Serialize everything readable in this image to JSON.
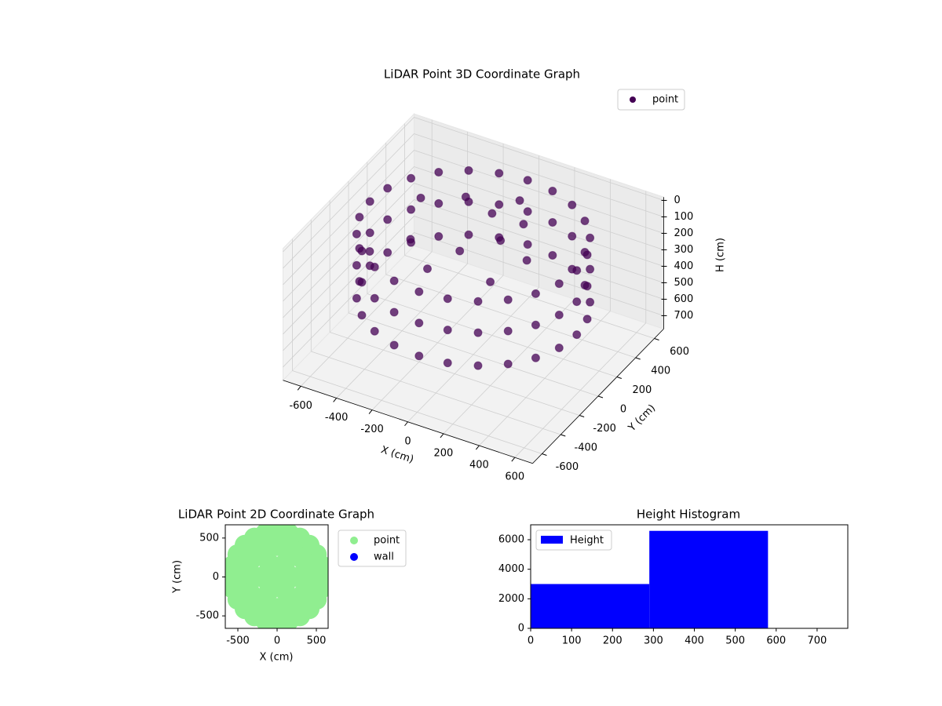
{
  "chart_data": [
    {
      "type": "scatter3d",
      "title": "LiDAR Point 3D Coordinate Graph",
      "x_label": "X (cm)",
      "y_label": "Y (cm)",
      "z_label": "H (cm)",
      "xlim": [
        -700,
        700
      ],
      "ylim": [
        -700,
        700
      ],
      "zlim": [
        -20,
        780
      ],
      "z_inverted": true,
      "xticks": [
        -600,
        -400,
        -200,
        0,
        200,
        400,
        600
      ],
      "yticks": [
        -600,
        -400,
        -200,
        0,
        200,
        400,
        600
      ],
      "zticks": [
        0,
        100,
        200,
        300,
        400,
        500,
        600,
        700
      ],
      "grid": true,
      "legend": "upper right",
      "series": [
        {
          "name": "point",
          "color": "#440154",
          "x": [
            580,
            560,
            502,
            410,
            290,
            150,
            0,
            -150,
            -290,
            -410,
            -502,
            -560,
            -580,
            -560,
            -502,
            -410,
            -290,
            -150,
            0,
            150,
            290,
            410,
            502,
            560,
            580,
            560,
            502,
            410,
            290,
            150,
            0,
            -150,
            -290,
            -410,
            -502,
            -560,
            -580,
            -560,
            -502,
            -410,
            -290,
            -150,
            0,
            150,
            290,
            410,
            502,
            560,
            580,
            560,
            502,
            410,
            290,
            150,
            0,
            -150,
            -290,
            -410,
            -502,
            -560,
            -580,
            -560,
            -502,
            -410,
            -290,
            -150,
            0,
            150,
            290,
            410,
            502,
            560,
            -400,
            -200,
            0,
            100,
            -300,
            200,
            -100,
            300,
            50,
            -450,
            150,
            -50
          ],
          "y": [
            0,
            150,
            290,
            410,
            502,
            560,
            580,
            560,
            502,
            410,
            290,
            150,
            0,
            -150,
            -290,
            -410,
            -502,
            -560,
            -580,
            -560,
            -502,
            -410,
            -290,
            -150,
            0,
            150,
            290,
            410,
            502,
            560,
            580,
            560,
            502,
            410,
            290,
            150,
            0,
            -150,
            -290,
            -410,
            -502,
            -560,
            -580,
            -560,
            -502,
            -410,
            -290,
            -150,
            0,
            150,
            290,
            410,
            502,
            560,
            580,
            560,
            502,
            410,
            290,
            150,
            0,
            -150,
            -290,
            -410,
            -502,
            -560,
            -580,
            -560,
            -502,
            -410,
            -290,
            -150,
            200,
            300,
            200,
            100,
            -100,
            -200,
            -300,
            0,
            400,
            -250,
            250,
            -50
          ],
          "z": [
            60,
            60,
            60,
            60,
            60,
            60,
            60,
            60,
            60,
            60,
            60,
            60,
            60,
            60,
            60,
            60,
            60,
            60,
            60,
            60,
            60,
            60,
            60,
            60,
            250,
            250,
            250,
            250,
            250,
            250,
            250,
            250,
            250,
            250,
            250,
            250,
            250,
            250,
            250,
            250,
            250,
            250,
            250,
            250,
            250,
            250,
            250,
            250,
            450,
            450,
            450,
            450,
            450,
            450,
            450,
            450,
            450,
            450,
            450,
            450,
            450,
            450,
            450,
            450,
            450,
            450,
            450,
            450,
            450,
            450,
            450,
            450,
            90,
            70,
            40,
            110,
            130,
            150,
            120,
            100,
            60,
            170,
            80,
            140
          ]
        }
      ]
    },
    {
      "type": "scatter",
      "title": "LiDAR Point 2D Coordinate Graph",
      "x_label": "X (cm)",
      "y_label": "Y (cm)",
      "xlim": [
        -660,
        650
      ],
      "ylim": [
        -660,
        670
      ],
      "xticks": [
        -500,
        0,
        500
      ],
      "yticks": [
        -500,
        0,
        500
      ],
      "legend": "outside right",
      "series": [
        {
          "name": "point",
          "color": "#90ee90",
          "x": [
            580,
            560,
            502,
            410,
            290,
            150,
            0,
            -150,
            -290,
            -410,
            -502,
            -560,
            -580,
            -560,
            -502,
            -410,
            -290,
            -150,
            0,
            150,
            290,
            410,
            502,
            560,
            400,
            346,
            200,
            0,
            -200,
            -346,
            -400,
            -346,
            -200,
            0,
            200,
            346,
            200,
            100,
            -100,
            -200,
            -100,
            100,
            0
          ],
          "y": [
            0,
            150,
            290,
            410,
            502,
            560,
            580,
            560,
            502,
            410,
            290,
            150,
            0,
            -150,
            -290,
            -410,
            -502,
            -560,
            -580,
            -560,
            -502,
            -410,
            -290,
            -150,
            0,
            200,
            346,
            400,
            346,
            200,
            0,
            -200,
            -346,
            -400,
            -346,
            -200,
            0,
            173,
            173,
            0,
            -173,
            -173,
            0
          ]
        },
        {
          "name": "wall",
          "color": "#0000ff",
          "x": [],
          "y": []
        }
      ]
    },
    {
      "type": "histogram",
      "title": "Height Histogram",
      "name": "Height",
      "color": "#0000ff",
      "bins": [
        0,
        290,
        580
      ],
      "counts": [
        3000,
        6600
      ],
      "xlim": [
        0,
        775
      ],
      "ylim": [
        0,
        7010
      ],
      "xticks": [
        0,
        100,
        200,
        300,
        400,
        500,
        600,
        700
      ],
      "yticks": [
        0,
        2000,
        4000,
        6000
      ],
      "legend": "upper left"
    }
  ]
}
